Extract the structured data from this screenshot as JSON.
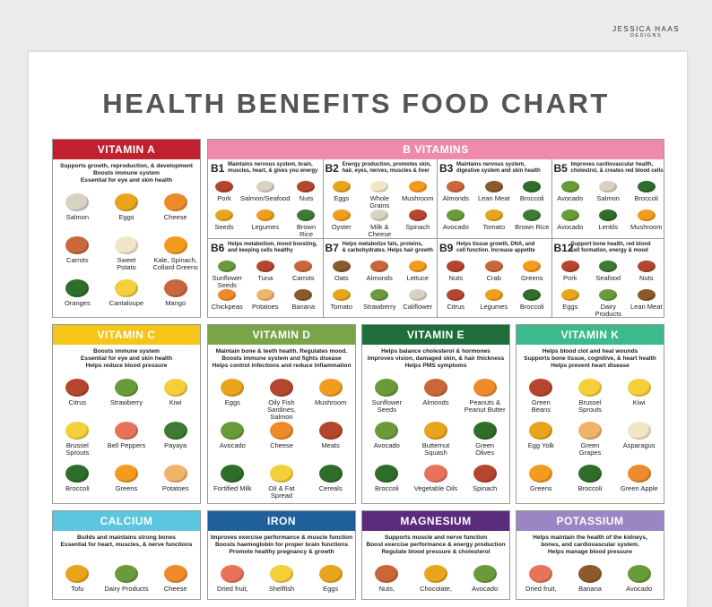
{
  "brand": {
    "name": "JESSICA HAAS",
    "sub": "DESIGNS"
  },
  "title": "HEALTH BENEFITS FOOD CHART",
  "b_vitamins": {
    "title": "B VITAMINS",
    "color": "#ee8aac",
    "groups": [
      {
        "label": "B1",
        "description": "Maintains nervous system, brain,\nmuscles, heart, & gives you energy",
        "items": [
          "Pork",
          "Salmon/Seafood",
          "Nuts",
          "Seeds",
          "Legumes",
          "Brown Rice"
        ]
      },
      {
        "label": "B2",
        "description": "Energy production, promotes skin,\nhair, eyes, nerves, muscles & liver",
        "items": [
          "Eggs",
          "Whole Grains",
          "Mushroom",
          "Oyster",
          "Milk & Cheese",
          "Spinach"
        ]
      },
      {
        "label": "B3",
        "description": "Maintains nervous system,\ndigestive system and skin health",
        "items": [
          "Almonds",
          "Lean Meat",
          "Broccoli",
          "Avocado",
          "Tomato",
          "Brown Rice"
        ]
      },
      {
        "label": "B5",
        "description": "Improves cardiovascular health,\ncholestrol, & creates red blood cells",
        "items": [
          "Avocado",
          "Salmon",
          "Broccoli",
          "Avocado",
          "Lentils",
          "Mushroom"
        ]
      },
      {
        "label": "B6",
        "description": "Helps metabolism, mood boosting,\nand keeping cells healthy",
        "items": [
          "Sunflower\nSeeds",
          "Tuna",
          "Carrots",
          "Chickpeas",
          "Potatoes",
          "Banana"
        ]
      },
      {
        "label": "B7",
        "description": "Helps metabolize fats, proteins,\n& carbohydrates. Helps hair growth",
        "items": [
          "Oats",
          "Almonds",
          "Lettuce",
          "Tomato",
          "Strawberry",
          "Califlower"
        ]
      },
      {
        "label": "B9",
        "description": "Helps tissue growth, DNA, and\ncell function. Increase appetite",
        "items": [
          "Nuts",
          "Crab",
          "Greens",
          "Citrus",
          "Legumes",
          "Broccoli"
        ]
      },
      {
        "label": "B12",
        "description": "Support bone health, red blood\ncell formation, energy & mood",
        "items": [
          "Pork",
          "Seafood",
          "Nuts",
          "Eggs",
          "Dairy Products",
          "Lean Meat"
        ]
      }
    ]
  },
  "sections": [
    {
      "title": "VITAMIN A",
      "color": "#c0202f",
      "description": [
        "Supports growth, reproduction, & development",
        "Boosts immune system",
        "Essential for eye and skin health"
      ],
      "items": [
        "Salmon",
        "Eggs",
        "Cheese",
        "Carrots",
        "Sweet\nPotato",
        "Kale, Spinach,\nCollard Greens",
        "Oranges",
        "Cantaloupe",
        "Mango"
      ]
    },
    {
      "title": "VITAMIN C",
      "color": "#f5c518",
      "description": [
        "Boosts immune system",
        "Essential for eye and skin health",
        "Helps reduce blood pressure"
      ],
      "items": [
        "Citrus",
        "Strawberry",
        "Kiwi",
        "Brussel\nSprouts",
        "Bell Peppers",
        "Payaya",
        "Broccoli",
        "Greens",
        "Potatoes"
      ]
    },
    {
      "title": "VITAMIN D",
      "color": "#7aa448",
      "description": [
        "Maintain bone & teeth health. Regulates mood.",
        "Boosts immune system and fights disease",
        "Helps control infections and reduce inflammation"
      ],
      "items": [
        "Eggs",
        "Oily Fish\nSardines, Salmon",
        "Mushroom",
        "Avocado",
        "Cheese",
        "Meats",
        "Fortified Milk",
        "Oil & Fat Spread",
        "Cereals"
      ]
    },
    {
      "title": "VITAMIN E",
      "color": "#1e6e3c",
      "description": [
        "Helps balance cholesterol & hormones",
        "Improves vision, damaged skin, & hair thickness",
        "Helps PMS symptoms"
      ],
      "items": [
        "Sunflower\nSeeds",
        "Almonds",
        "Peanuts &\nPeanut Butter",
        "Avocado",
        "Butternut\nSquash",
        "Green\nOlives",
        "Broccoli",
        "Vegetable Oils",
        "Spinach"
      ]
    },
    {
      "title": "VITAMIN K",
      "color": "#3dba8c",
      "description": [
        "Helps blood clot and heal wounds",
        "Supports bone tissue, cognitive, & heart health",
        "Helps prevent heart disease"
      ],
      "items": [
        "Green\nBeans",
        "Brussel\nSprouts",
        "Kiwi",
        "Egg Yolk",
        "Green\nGrapes",
        "Asparagus",
        "Greens",
        "Broccoli",
        "Green Apple"
      ]
    },
    {
      "title": "CALCIUM",
      "color": "#5bc6dd",
      "description": [
        "Builds and maintains strong bones",
        "Essential for heart, muscles, & nerve functions"
      ],
      "items": [
        "Tofu",
        "Dairy Products",
        "Cheese"
      ]
    },
    {
      "title": "IRON",
      "color": "#1f5f9a",
      "description": [
        "Improves exercise performance & muscle function",
        "Boosts haemoglobin for proper brain functions",
        "Promote healthy pregnancy & growth"
      ],
      "items": [
        "Dried fruit,",
        "Shellfish",
        "Eggs"
      ]
    },
    {
      "title": "MAGNESIUM",
      "color": "#5b2c7d",
      "description": [
        "Supports muscle and nerve function",
        "Boost exercise performance & energy production",
        "Regulate blood pressure & cholesterol"
      ],
      "items": [
        "Nuts,",
        "Chocolate,",
        "Avocado"
      ]
    },
    {
      "title": "POTASSIUM",
      "color": "#9b86c4",
      "description": [
        "Helps maintain the health of the kidneys,",
        "bones, and cardiovascular system.",
        "Helps manage blood pressure"
      ],
      "items": [
        "Dried fruit,",
        "Banana",
        "Avocado"
      ]
    }
  ]
}
